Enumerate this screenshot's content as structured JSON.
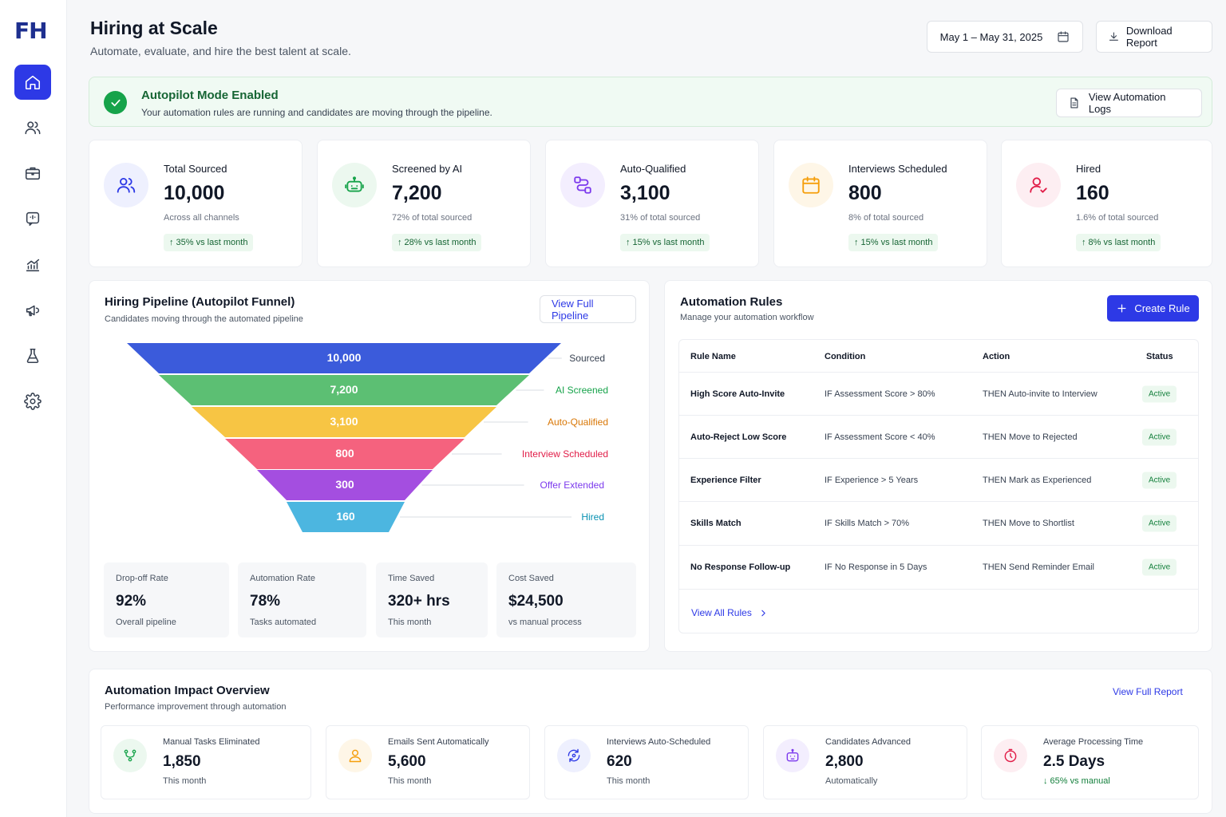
{
  "brand": {
    "logo_text": "FH"
  },
  "header": {
    "title": "Hiring at Scale",
    "subtitle": "Automate, evaluate, and hire the best talent at scale.",
    "date_range": "May 1 – May 31, 2025",
    "download_label": "Download Report"
  },
  "banner": {
    "title": "Autopilot Mode Enabled",
    "subtitle": "Your automation rules are running and candidates are moving through the pipeline.",
    "logs_label": "View Automation Logs"
  },
  "stats": [
    {
      "label": "Total Sourced",
      "value": "10,000",
      "sub": "Across all channels",
      "trend": "↑  35% vs last month",
      "icon": "users-icon",
      "color": "#2d39e6",
      "bg": "#eef0fe"
    },
    {
      "label": "Screened by AI",
      "value": "7,200",
      "sub": "72% of total sourced",
      "trend": "↑  28% vs last month",
      "icon": "robot-icon",
      "color": "#16a34a",
      "bg": "#ecf8ef"
    },
    {
      "label": "Auto-Qualified",
      "value": "3,100",
      "sub": "31% of total sourced",
      "trend": "↑  15% vs last month",
      "icon": "workflow-icon",
      "color": "#7c3aed",
      "bg": "#f3eefe"
    },
    {
      "label": "Interviews Scheduled",
      "value": "800",
      "sub": "8% of total sourced",
      "trend": "↑  15% vs last month",
      "icon": "calendar-icon",
      "color": "#f59e0b",
      "bg": "#fef6e7"
    },
    {
      "label": "Hired",
      "value": "160",
      "sub": "1.6% of total sourced",
      "trend": "↑  8% vs last month",
      "icon": "user-check-icon",
      "color": "#e11d48",
      "bg": "#fdeef2"
    }
  ],
  "pipeline": {
    "title": "Hiring Pipeline (Autopilot Funnel)",
    "subtitle": "Candidates moving through the automated pipeline",
    "view_label": "View Full Pipeline",
    "stages": [
      {
        "label": "Sourced",
        "value": "10,000",
        "color": "#3b5bdb",
        "label_color": "#374151"
      },
      {
        "label": "AI Screened",
        "value": "7,200",
        "color": "#5cbf73",
        "label_color": "#16a34a"
      },
      {
        "label": "Auto-Qualified",
        "value": "3,100",
        "color": "#f7c544",
        "label_color": "#d97706"
      },
      {
        "label": "Interview Scheduled",
        "value": "800",
        "color": "#f5627e",
        "label_color": "#e11d48"
      },
      {
        "label": "Offer Extended",
        "value": "300",
        "color": "#a44ee0",
        "label_color": "#7c3aed"
      },
      {
        "label": "Hired",
        "value": "160",
        "color": "#4cb6e0",
        "label_color": "#0891b2"
      }
    ],
    "metrics": [
      {
        "label": "Drop-off Rate",
        "value": "92%",
        "sub": "Overall pipeline"
      },
      {
        "label": "Automation Rate",
        "value": "78%",
        "sub": "Tasks automated"
      },
      {
        "label": "Time Saved",
        "value": "320+ hrs",
        "sub": "This month"
      },
      {
        "label": "Cost Saved",
        "value": "$24,500",
        "sub": "vs manual process"
      }
    ]
  },
  "rules": {
    "title": "Automation Rules",
    "subtitle": "Manage your automation workflow",
    "create_label": "Create Rule",
    "columns": [
      "Rule Name",
      "Condition",
      "Action",
      "Status"
    ],
    "rows": [
      {
        "name": "High Score Auto-Invite",
        "condition": "IF Assessment Score > 80%",
        "action": "THEN  Auto-invite to Interview",
        "status": "Active"
      },
      {
        "name": "Auto-Reject Low Score",
        "condition": "IF Assessment Score < 40%",
        "action": "THEN  Move to Rejected",
        "status": "Active"
      },
      {
        "name": "Experience Filter",
        "condition": "IF Experience > 5 Years",
        "action": "THEN  Mark as Experienced",
        "status": "Active"
      },
      {
        "name": "Skills Match",
        "condition": "IF Skills Match > 70%",
        "action": "THEN  Move to Shortlist",
        "status": "Active"
      },
      {
        "name": "No Response Follow-up",
        "condition": "IF No Response in 5 Days",
        "action": "THEN  Send Reminder Email",
        "status": "Active"
      }
    ],
    "view_all_label": "View All Rules"
  },
  "impact": {
    "title": "Automation Impact Overview",
    "subtitle": "Performance improvement through automation",
    "view_label": "View Full Report",
    "items": [
      {
        "label": "Manual Tasks Eliminated",
        "value": "1,850",
        "sub": "This month",
        "icon": "flow-icon",
        "color": "#16a34a",
        "bg": "#ecf8ef"
      },
      {
        "label": "Emails Sent Automatically",
        "value": "5,600",
        "sub": "This month",
        "icon": "user-icon",
        "color": "#f59e0b",
        "bg": "#fef6e7"
      },
      {
        "label": "Interviews Auto-Scheduled",
        "value": "620",
        "sub": "This month",
        "icon": "sync-icon",
        "color": "#2d39e6",
        "bg": "#eef0fe"
      },
      {
        "label": "Candidates Advanced",
        "value": "2,800",
        "sub": "Automatically",
        "icon": "bot-icon",
        "color": "#7c3aed",
        "bg": "#f3eefe"
      },
      {
        "label": "Average Processing Time",
        "value": "2.5 Days",
        "sub": "↓  65% vs manual",
        "icon": "timer-icon",
        "color": "#e11d48",
        "bg": "#fdeef2"
      }
    ]
  }
}
